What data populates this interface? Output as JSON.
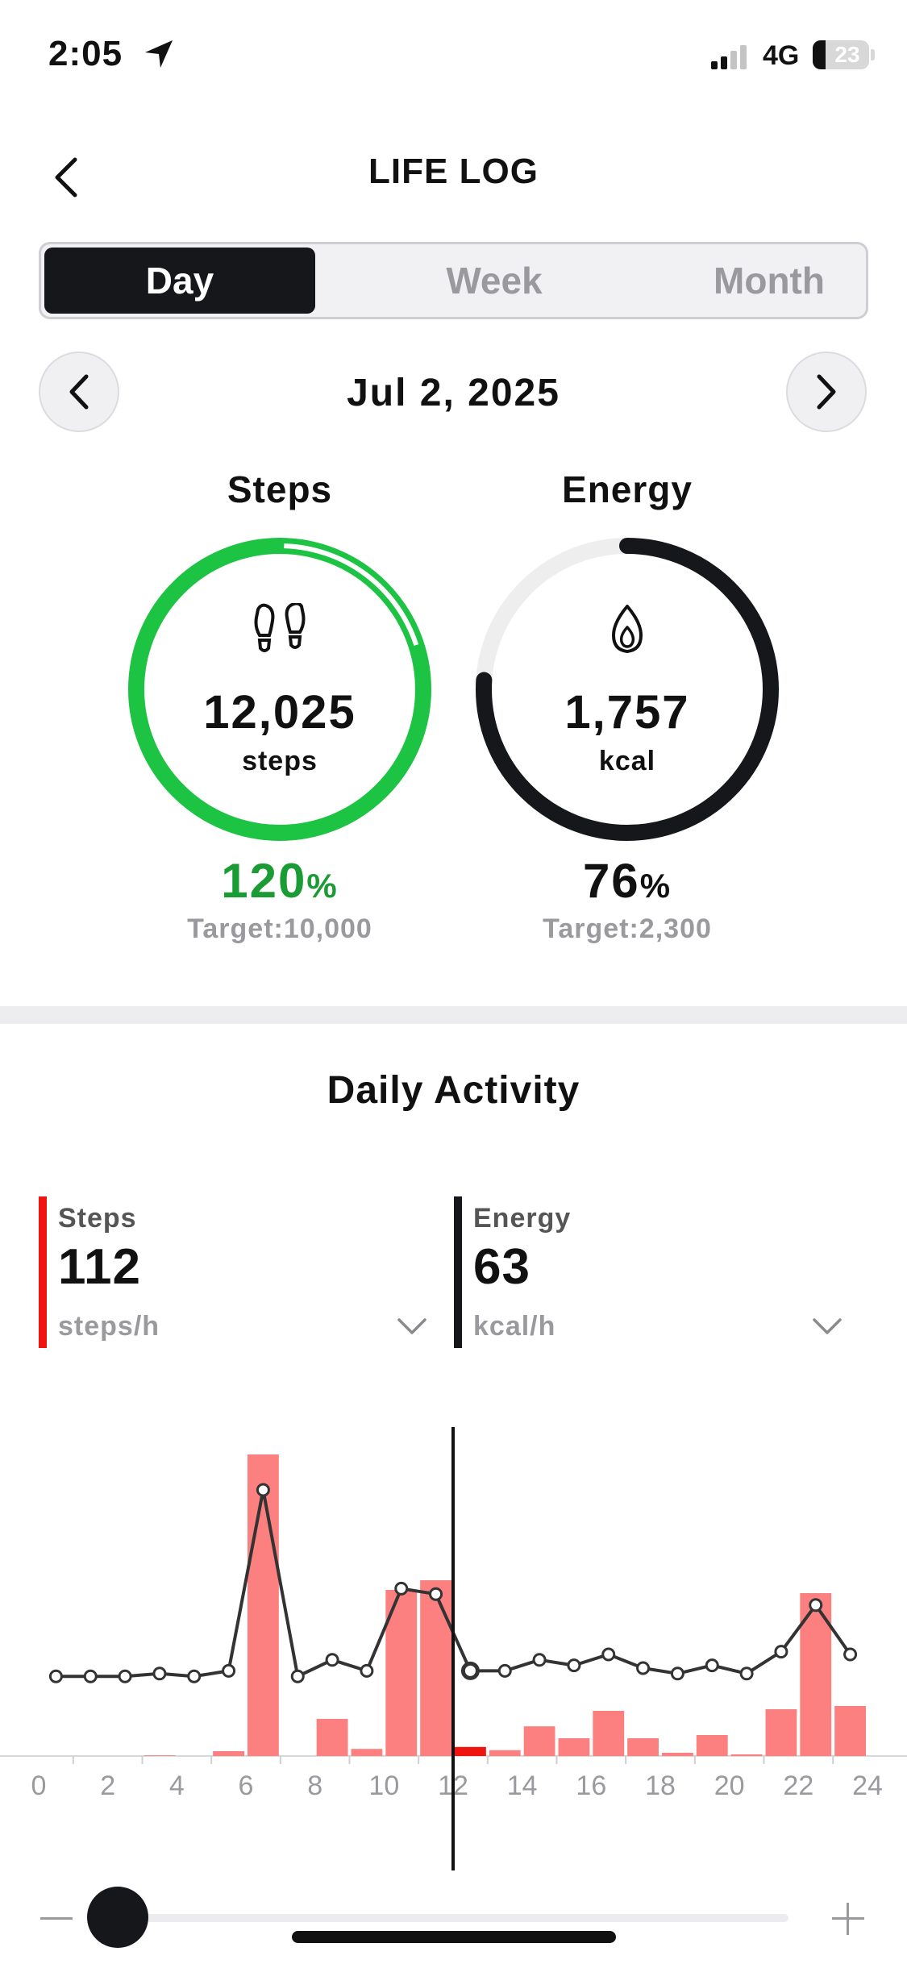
{
  "status_bar": {
    "time": "2:05",
    "network": "4G",
    "battery": "23"
  },
  "header": {
    "title": "LIFE LOG"
  },
  "tabs": [
    {
      "label": "Day",
      "active": true
    },
    {
      "label": "Week",
      "active": false
    },
    {
      "label": "Month",
      "active": false
    }
  ],
  "date": "Jul 2, 2025",
  "rings": {
    "steps": {
      "label": "Steps",
      "value": "12,025",
      "unit": "steps",
      "percent": "120",
      "percent_symbol": "%",
      "target": "Target:10,000",
      "progress": 1.2,
      "color": "#1dc342",
      "pct_color": "#1a9b34"
    },
    "energy": {
      "label": "Energy",
      "value": "1,757",
      "unit": "kcal",
      "percent": "76",
      "percent_symbol": "%",
      "target": "Target:2,300",
      "progress": 0.76,
      "color": "#16171a",
      "pct_color": "#111111"
    }
  },
  "section_title": "Daily Activity",
  "metrics": {
    "steps": {
      "name": "Steps",
      "value": "112",
      "unit": "steps/h",
      "color": "#f0140f"
    },
    "energy": {
      "name": "Energy",
      "value": "63",
      "unit": "kcal/h",
      "color": "#16171a"
    }
  },
  "chart_data": {
    "type": "bar",
    "x_ticks": [
      "0",
      "2",
      "4",
      "6",
      "8",
      "10",
      "12",
      "14",
      "16",
      "18",
      "20",
      "22",
      "24"
    ],
    "xlim": [
      0,
      24
    ],
    "selected_hour": 12,
    "series": [
      {
        "type": "bar",
        "values": [
          0,
          0,
          0,
          2,
          0,
          15,
          935,
          0,
          115,
          22,
          515,
          545,
          28,
          18,
          92,
          55,
          140,
          55,
          10,
          65,
          5,
          145,
          505,
          155
        ],
        "color": "#fc8080"
      },
      {
        "type": "line",
        "values": [
          32,
          32,
          32,
          33,
          32,
          34,
          100,
          32,
          38,
          34,
          64,
          62,
          34,
          34,
          38,
          36,
          40,
          35,
          33,
          36,
          33,
          41,
          58,
          40
        ],
        "color": "#333333"
      }
    ]
  },
  "colors": {
    "accent_green": "#1dc342",
    "dark": "#16171a",
    "bar_red": "#fc8080",
    "bar_red_highlight": "#f0140f"
  }
}
